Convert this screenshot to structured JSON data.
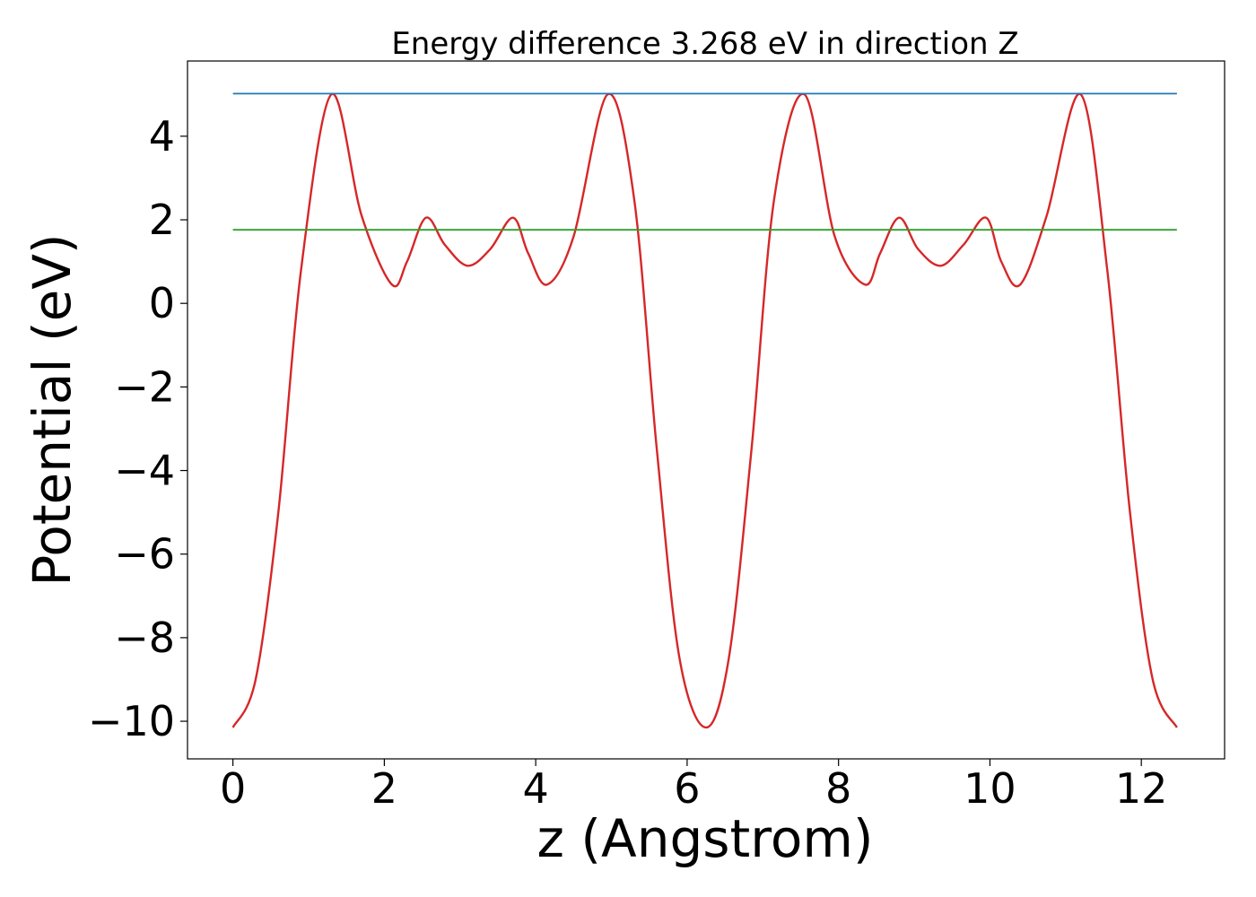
{
  "chart_data": {
    "type": "line",
    "title": "Energy difference 3.268 eV in direction Z",
    "xlabel": "z (Angstrom)",
    "ylabel": "Potential (eV)",
    "xlim": [
      -0.6,
      13.1
    ],
    "ylim": [
      -10.9,
      5.8
    ],
    "x_ticks": [
      0,
      2,
      4,
      6,
      8,
      10,
      12
    ],
    "x_tick_labels": [
      "0",
      "2",
      "4",
      "6",
      "8",
      "10",
      "12"
    ],
    "y_ticks": [
      4,
      2,
      0,
      -2,
      -4,
      -6,
      -8,
      -10
    ],
    "y_tick_labels": [
      "4",
      "2",
      "0",
      "−2",
      "−4",
      "−6",
      "−8",
      "−10"
    ],
    "grid": false,
    "series": [
      {
        "color": "#d62728",
        "x": [
          0,
          0.3,
          0.6,
          0.9,
          1.3,
          1.7,
          2.1,
          2.3,
          2.55,
          2.8,
          3.1,
          3.4,
          3.7,
          3.9,
          4.15,
          4.5,
          4.95,
          5.3,
          5.6,
          5.9,
          6.25,
          6.55,
          6.85,
          7.15,
          7.55,
          7.95,
          8.35,
          8.55,
          8.8,
          9.05,
          9.35,
          9.65,
          9.95,
          10.15,
          10.4,
          10.75,
          11.2,
          11.55,
          11.85,
          12.15,
          12.47
        ],
        "y": [
          -10.15,
          -9.0,
          -5.0,
          0.8,
          5.0,
          2.1,
          0.45,
          1.0,
          2.05,
          1.4,
          0.9,
          1.3,
          2.05,
          1.2,
          0.45,
          1.6,
          5.0,
          2.5,
          -3.5,
          -8.5,
          -10.15,
          -8.5,
          -3.5,
          2.5,
          5.0,
          1.6,
          0.45,
          1.2,
          2.05,
          1.3,
          0.9,
          1.4,
          2.05,
          1.0,
          0.45,
          2.1,
          5.0,
          0.8,
          -5.0,
          -9.0,
          -10.15
        ]
      },
      {
        "color": "#1f77b4",
        "x": [
          0,
          12.47
        ],
        "y": [
          5.02,
          5.02
        ]
      },
      {
        "color": "#2ca02c",
        "x": [
          0,
          12.47
        ],
        "y": [
          1.76,
          1.76
        ]
      }
    ]
  }
}
